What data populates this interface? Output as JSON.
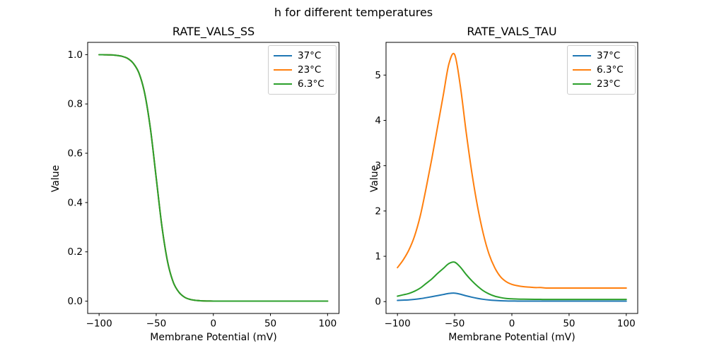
{
  "figure": {
    "suptitle": "h for different temperatures",
    "background": "#ffffff",
    "text_color": "#000000",
    "legend_border_color": "#cccccc"
  },
  "chart_data": [
    {
      "id": "ss",
      "type": "line",
      "title": "RATE_VALS_SS",
      "xlabel": "Membrane Potential (mV)",
      "ylabel": "Value",
      "xlim": [
        -100,
        100
      ],
      "ylim": [
        0.0,
        1.0
      ],
      "grid": false,
      "legend_position": "upper right",
      "note": "All three temperature curves are identical and overlap exactly; only the last-drawn green (6.3°C) curve is visible.",
      "xticks": [
        -100,
        -50,
        0,
        50,
        100
      ],
      "xtick_labels": [
        "−100",
        "−50",
        "0",
        "50",
        "100"
      ],
      "yticks": [
        0.0,
        0.2,
        0.4,
        0.6,
        0.8,
        1.0
      ],
      "ytick_labels": [
        "0.0",
        "0.2",
        "0.4",
        "0.6",
        "0.8",
        "1.0"
      ],
      "x": [
        -100,
        -95,
        -90,
        -85,
        -80,
        -75,
        -70,
        -65,
        -60,
        -55,
        -50,
        -45,
        -40,
        -35,
        -30,
        -25,
        -20,
        -15,
        -10,
        -5,
        0,
        5,
        10,
        15,
        20,
        25,
        30,
        35,
        40,
        45,
        50,
        55,
        60,
        65,
        70,
        75,
        80,
        85,
        90,
        95,
        100
      ],
      "series": [
        {
          "name": "37°C",
          "color": "#1f77b4",
          "values": [
            0.9998,
            0.9994,
            0.9988,
            0.9971,
            0.9933,
            0.9846,
            0.9644,
            0.9241,
            0.8411,
            0.6971,
            0.5,
            0.3029,
            0.1589,
            0.0759,
            0.0356,
            0.0154,
            0.0067,
            0.0029,
            0.0012,
            0.0005,
            0.0002,
            0.0001,
            0,
            0,
            0,
            0,
            0,
            0,
            0,
            0,
            0,
            0,
            0,
            0,
            0,
            0,
            0,
            0,
            0,
            0,
            0
          ]
        },
        {
          "name": "23°C",
          "color": "#ff7f0e",
          "values": [
            0.9998,
            0.9994,
            0.9988,
            0.9971,
            0.9933,
            0.9846,
            0.9644,
            0.9241,
            0.8411,
            0.6971,
            0.5,
            0.3029,
            0.1589,
            0.0759,
            0.0356,
            0.0154,
            0.0067,
            0.0029,
            0.0012,
            0.0005,
            0.0002,
            0.0001,
            0,
            0,
            0,
            0,
            0,
            0,
            0,
            0,
            0,
            0,
            0,
            0,
            0,
            0,
            0,
            0,
            0,
            0,
            0
          ]
        },
        {
          "name": "6.3°C",
          "color": "#2ca02c",
          "values": [
            0.9998,
            0.9994,
            0.9988,
            0.9971,
            0.9933,
            0.9846,
            0.9644,
            0.9241,
            0.8411,
            0.6971,
            0.5,
            0.3029,
            0.1589,
            0.0759,
            0.0356,
            0.0154,
            0.0067,
            0.0029,
            0.0012,
            0.0005,
            0.0002,
            0.0001,
            0,
            0,
            0,
            0,
            0,
            0,
            0,
            0,
            0,
            0,
            0,
            0,
            0,
            0,
            0,
            0,
            0,
            0,
            0
          ]
        }
      ]
    },
    {
      "id": "tau",
      "type": "line",
      "title": "RATE_VALS_TAU",
      "xlabel": "Membrane Potential (mV)",
      "ylabel": "Value",
      "xlim": [
        -100,
        100
      ],
      "ylim": [
        0.0,
        5.45
      ],
      "grid": false,
      "legend_position": "upper right",
      "note": "Bell-shaped time-constant curves peaking near −52 mV; peak ≈ 5.45 for 6.3°C, ≈ 0.87 for 23°C, ≈ 0.19 for 37°C; flat right tails ≈ 0.30 / 0.05 / 0.01.",
      "xticks": [
        -100,
        -50,
        0,
        50,
        100
      ],
      "xtick_labels": [
        "−100",
        "−50",
        "0",
        "50",
        "100"
      ],
      "yticks": [
        0,
        1,
        2,
        3,
        4,
        5
      ],
      "ytick_labels": [
        "0",
        "1",
        "2",
        "3",
        "4",
        "5"
      ],
      "x": [
        -100,
        -95,
        -90,
        -85,
        -80,
        -75,
        -70,
        -65,
        -60,
        -55,
        -50,
        -45,
        -40,
        -35,
        -30,
        -25,
        -20,
        -15,
        -10,
        -5,
        0,
        5,
        10,
        15,
        20,
        25,
        30,
        35,
        40,
        45,
        50,
        55,
        60,
        65,
        70,
        75,
        80,
        85,
        90,
        95,
        100
      ],
      "series": [
        {
          "name": "37°C",
          "color": "#1f77b4",
          "values": [
            0.026,
            0.032,
            0.039,
            0.05,
            0.065,
            0.086,
            0.108,
            0.132,
            0.156,
            0.18,
            0.187,
            0.163,
            0.128,
            0.098,
            0.072,
            0.051,
            0.036,
            0.026,
            0.019,
            0.015,
            0.013,
            0.012,
            0.0113,
            0.011,
            0.0106,
            0.0104,
            0.0103,
            0.0103,
            0.0103,
            0.0103,
            0.0103,
            0.0103,
            0.0103,
            0.0103,
            0.0103,
            0.0103,
            0.0103,
            0.0103,
            0.0103,
            0.0103,
            0.0103
          ]
        },
        {
          "name": "6.3°C",
          "color": "#ff7f0e",
          "values": [
            0.75,
            0.92,
            1.14,
            1.45,
            1.9,
            2.5,
            3.15,
            3.85,
            4.55,
            5.25,
            5.45,
            4.75,
            3.75,
            2.85,
            2.1,
            1.5,
            1.05,
            0.75,
            0.55,
            0.44,
            0.38,
            0.35,
            0.33,
            0.32,
            0.31,
            0.31,
            0.3,
            0.3,
            0.3,
            0.3,
            0.3,
            0.3,
            0.3,
            0.3,
            0.3,
            0.3,
            0.3,
            0.3,
            0.3,
            0.3,
            0.3
          ]
        },
        {
          "name": "23°C",
          "color": "#2ca02c",
          "values": [
            0.12,
            0.15,
            0.18,
            0.23,
            0.3,
            0.4,
            0.5,
            0.62,
            0.73,
            0.84,
            0.87,
            0.76,
            0.6,
            0.46,
            0.34,
            0.24,
            0.17,
            0.12,
            0.09,
            0.07,
            0.061,
            0.056,
            0.053,
            0.051,
            0.05,
            0.049,
            0.048,
            0.048,
            0.048,
            0.048,
            0.048,
            0.048,
            0.048,
            0.048,
            0.048,
            0.048,
            0.048,
            0.048,
            0.048,
            0.048,
            0.048
          ]
        }
      ]
    }
  ]
}
